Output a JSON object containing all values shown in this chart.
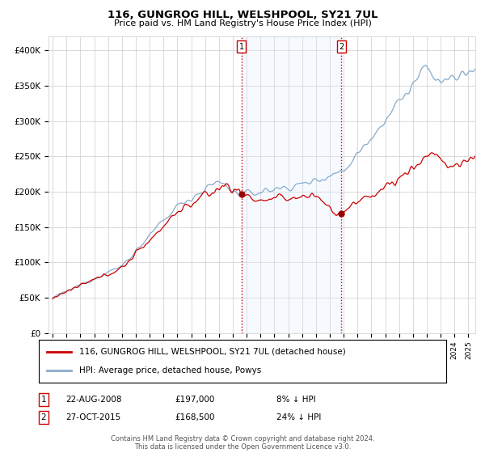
{
  "title": "116, GUNGROG HILL, WELSHPOOL, SY21 7UL",
  "subtitle": "Price paid vs. HM Land Registry's House Price Index (HPI)",
  "ylabel_ticks": [
    "£0",
    "£50K",
    "£100K",
    "£150K",
    "£200K",
    "£250K",
    "£300K",
    "£350K",
    "£400K"
  ],
  "ylim": [
    0,
    420000
  ],
  "xlim_start": 1994.7,
  "xlim_end": 2025.5,
  "legend_line1": "116, GUNGROG HILL, WELSHPOOL, SY21 7UL (detached house)",
  "legend_line2": "HPI: Average price, detached house, Powys",
  "transaction1_label": "1",
  "transaction1_date": "22-AUG-2008",
  "transaction1_price": "£197,000",
  "transaction1_hpi": "8% ↓ HPI",
  "transaction1_year": 2008.64,
  "transaction2_label": "2",
  "transaction2_date": "27-OCT-2015",
  "transaction2_price": "£168,500",
  "transaction2_hpi": "24% ↓ HPI",
  "transaction2_year": 2015.82,
  "t1_price": 197000,
  "t2_price": 168500,
  "footer": "Contains HM Land Registry data © Crown copyright and database right 2024.\nThis data is licensed under the Open Government Licence v3.0.",
  "line_color_property": "#cc0000",
  "line_color_hpi": "#88aacc",
  "highlight_color": "#ddeeff",
  "vline_color": "#cc0000",
  "background_color": "#ffffff",
  "grid_color": "#cccccc"
}
